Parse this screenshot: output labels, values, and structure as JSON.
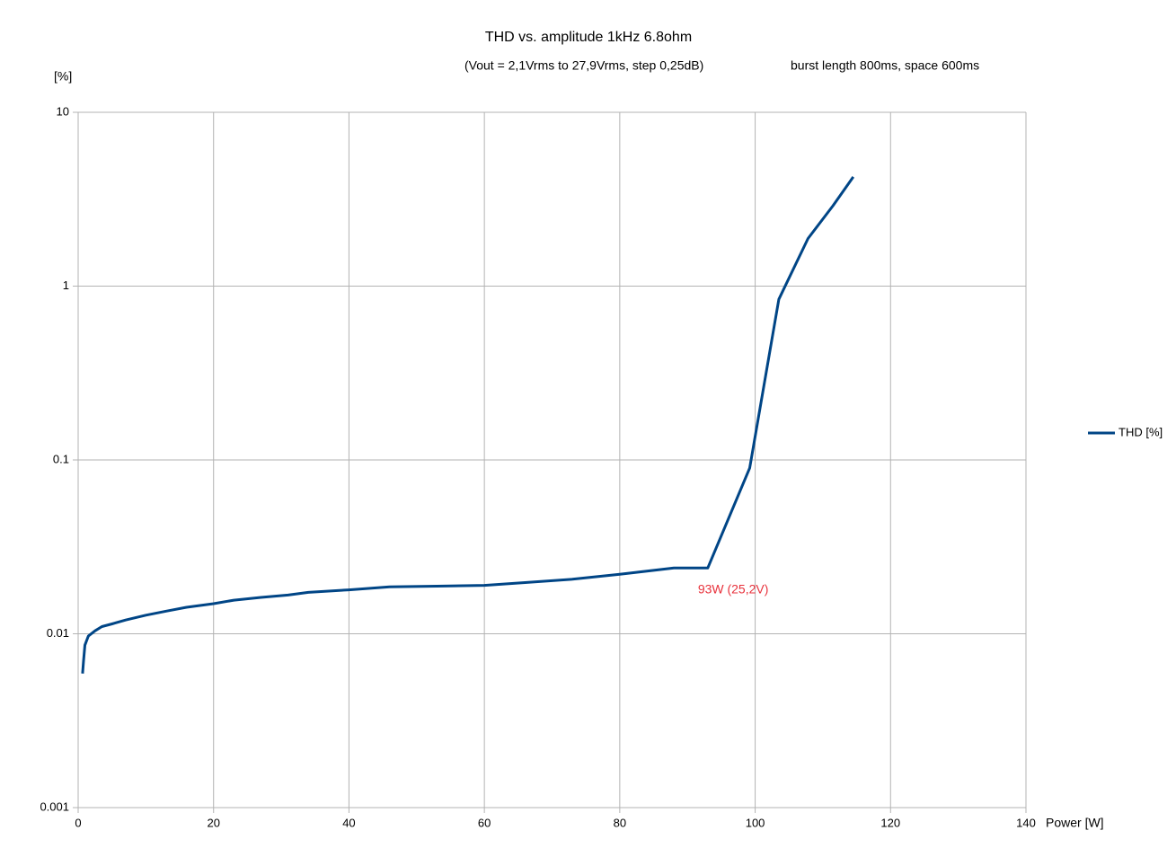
{
  "chart_data": {
    "type": "line",
    "title": "THD vs. amplitude 1kHz 6.8ohm",
    "subtitle": [
      "(Vout = 2,1Vrms to 27,9Vrms, step 0,25dB)",
      "burst length 800ms, space 600ms"
    ],
    "y_label": "[%]",
    "x_label": "Power [W]",
    "annotation": "93W (25,2V)",
    "x": [
      0.65,
      0.8,
      1.0,
      1.5,
      2.5,
      3.5,
      5,
      7,
      10,
      13,
      16,
      20,
      23,
      27,
      31,
      34,
      40,
      46,
      53,
      60,
      66,
      73,
      80,
      88,
      93,
      99.2,
      103.5,
      107.8,
      111.5,
      114.5
    ],
    "series": [
      {
        "name": "THD [%]",
        "color": "#004586",
        "values": [
          0.0059,
          0.007,
          0.0086,
          0.0097,
          0.0104,
          0.011,
          0.0114,
          0.012,
          0.0128,
          0.0135,
          0.0142,
          0.0149,
          0.0156,
          0.0162,
          0.0167,
          0.0173,
          0.0179,
          0.0186,
          0.0188,
          0.019,
          0.0197,
          0.0206,
          0.022,
          0.0239,
          0.0239,
          0.09,
          0.84,
          1.88,
          2.9,
          4.25
        ]
      }
    ],
    "xlim": [
      0,
      140
    ],
    "xticks": [
      0,
      20,
      40,
      60,
      80,
      100,
      120,
      140
    ],
    "ylim": [
      0.001,
      10
    ],
    "yticks": [
      0.001,
      0.01,
      0.1,
      1,
      10
    ],
    "log_y": true,
    "grid": true,
    "legend": "right"
  }
}
